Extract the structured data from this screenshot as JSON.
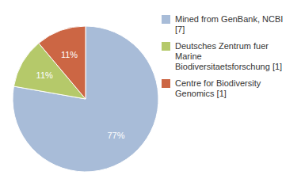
{
  "chart_data": {
    "type": "pie",
    "categories": [
      "Mined from GenBank, NCBI [7]",
      "Deutsches Zentrum fuer Marine\nBiodiversitaetsforschung [1]",
      "Centre for Biodiversity\nGenomics [1]"
    ],
    "values": [
      77,
      11,
      11
    ],
    "value_labels": [
      "77%",
      "11%",
      "11%"
    ],
    "colors": [
      "#a8bcd8",
      "#b5c96a",
      "#cc6644"
    ],
    "data_labels": true,
    "legend": "right"
  }
}
